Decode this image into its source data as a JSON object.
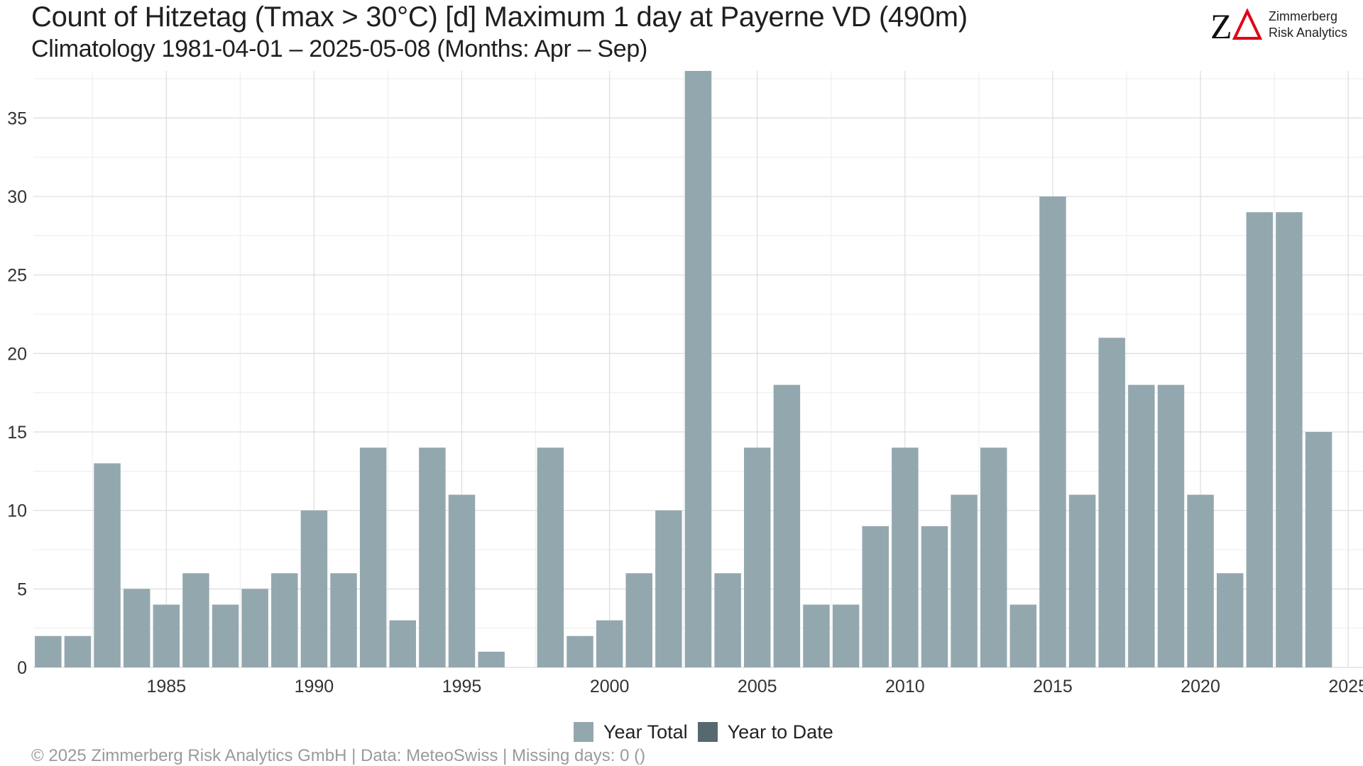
{
  "title": "Count of Hitzetag (Tmax > 30°C) [d] Maximum 1 day at Payerne  VD (490m)",
  "subtitle": "Climatology 1981-04-01 – 2025-05-08 (Months: Apr – Sep)",
  "logo": {
    "mark": "ZΔ",
    "line1": "Zimmerberg",
    "line2": "Risk Analytics"
  },
  "footer": "©  2025 Zimmerberg Risk Analytics GmbH | Data: MeteoSwiss | Missing days: 0 ()",
  "colors": {
    "year_total": "#93a7ae",
    "year_to_date": "#56696f",
    "grid": "#dcdcdc",
    "logo_red": "#e1001a"
  },
  "chart_data": {
    "type": "bar",
    "title": "Count of Hitzetag (Tmax > 30°C) [d] Maximum 1 day at Payerne  VD (490m)",
    "subtitle": "Climatology 1981-04-01 – 2025-05-08 (Months: Apr – Sep)",
    "xlabel": "",
    "ylabel": "",
    "xlim": [
      1980.5,
      2025.5
    ],
    "ylim": [
      0,
      38
    ],
    "xticks": [
      1985,
      1990,
      1995,
      2000,
      2005,
      2010,
      2015,
      2020,
      2025
    ],
    "yticks": [
      0,
      5,
      10,
      15,
      20,
      25,
      30,
      35
    ],
    "grid": true,
    "legend_position": "bottom",
    "x": [
      1981,
      1982,
      1983,
      1984,
      1985,
      1986,
      1987,
      1988,
      1989,
      1990,
      1991,
      1992,
      1993,
      1994,
      1995,
      1996,
      1997,
      1998,
      1999,
      2000,
      2001,
      2002,
      2003,
      2004,
      2005,
      2006,
      2007,
      2008,
      2009,
      2010,
      2011,
      2012,
      2013,
      2014,
      2015,
      2016,
      2017,
      2018,
      2019,
      2020,
      2021,
      2022,
      2023,
      2024,
      2025
    ],
    "series": [
      {
        "name": "Year Total",
        "values": [
          2,
          2,
          13,
          5,
          4,
          6,
          4,
          5,
          6,
          10,
          6,
          14,
          3,
          14,
          11,
          1,
          0,
          14,
          2,
          3,
          6,
          10,
          38,
          6,
          14,
          18,
          4,
          4,
          9,
          14,
          9,
          11,
          14,
          4,
          30,
          11,
          21,
          18,
          18,
          11,
          6,
          29,
          29,
          15,
          0
        ]
      },
      {
        "name": "Year to Date",
        "values": [
          0,
          0,
          0,
          0,
          0,
          0,
          0,
          0,
          0,
          0,
          0,
          0,
          0,
          0,
          0,
          0,
          0,
          0,
          0,
          0,
          0,
          0,
          0,
          0,
          0,
          0,
          0,
          0,
          0,
          0,
          0,
          0,
          0,
          0,
          0,
          0,
          0,
          0,
          0,
          0,
          0,
          0,
          0,
          0,
          0
        ]
      }
    ]
  }
}
